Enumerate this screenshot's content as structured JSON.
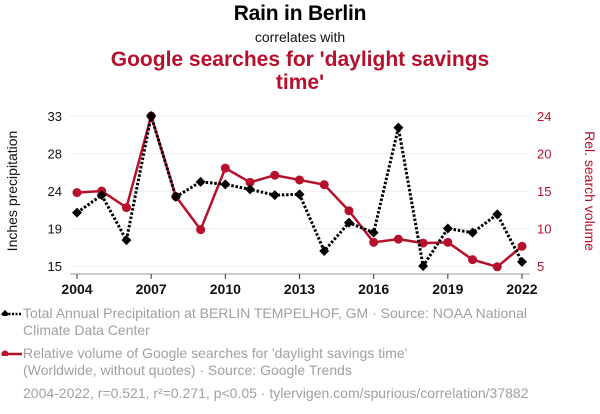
{
  "header": {
    "title": "Rain in Berlin",
    "subtitle": "correlates with",
    "title2": "Google searches for 'daylight savings time'"
  },
  "colors": {
    "series1": "#000000",
    "series2": "#b5112d",
    "grid": "#eeeeee",
    "muted": "#a0a0a0"
  },
  "chart_data": {
    "type": "line",
    "title": "Rain in Berlin correlates with Google searches for 'daylight savings time'",
    "x": [
      2004,
      2005,
      2006,
      2007,
      2008,
      2009,
      2010,
      2011,
      2012,
      2013,
      2014,
      2015,
      2016,
      2017,
      2018,
      2019,
      2020,
      2021,
      2022
    ],
    "xticks": [
      "2004",
      "2007",
      "2010",
      "2013",
      "2016",
      "2019",
      "2022"
    ],
    "xlim": [
      2004,
      2022
    ],
    "grid": true,
    "series": [
      {
        "name": "Total Annual Precipitation at BERLIN TEMPELHOF, GM",
        "axis": "left",
        "style": "dotted-diamond",
        "values": [
          21.4,
          23.5,
          18.1,
          33.0,
          23.3,
          25.1,
          24.8,
          24.2,
          23.5,
          23.6,
          16.8,
          20.2,
          19.0,
          31.6,
          15.0,
          19.5,
          19.0,
          21.2,
          15.5
        ]
      },
      {
        "name": "Relative volume of Google searches for 'daylight savings time'",
        "axis": "right",
        "style": "solid-circle",
        "values": [
          14.3,
          14.5,
          12.4,
          24.0,
          13.8,
          9.6,
          17.4,
          15.6,
          16.5,
          15.9,
          15.3,
          12.0,
          8.0,
          8.4,
          7.9,
          8.0,
          5.8,
          4.9,
          7.5
        ]
      }
    ],
    "ylabel": "Inches precipitation",
    "ylim": [
      15,
      33
    ],
    "yticks": [
      "15",
      "19",
      "24",
      "28",
      "33"
    ],
    "y2label": "Rel. search volume",
    "y2lim": [
      5,
      24
    ],
    "y2ticks": [
      "5",
      "10",
      "15",
      "20",
      "24"
    ]
  },
  "legend": [
    {
      "text_line1": "Total Annual Precipitation at BERLIN TEMPELHOF, GM · Source: NOAA National",
      "text_line2": "Climate Data Center"
    },
    {
      "text_line1": "Relative volume of Google searches for 'daylight savings time'",
      "text_line2": "(Worldwide, without quotes) · Source: Google Trends"
    }
  ],
  "footer": {
    "text": "2004-2022, r=0.521, r²=0.271, p<0.05 · tylervigen.com/spurious/correlation/37882"
  }
}
